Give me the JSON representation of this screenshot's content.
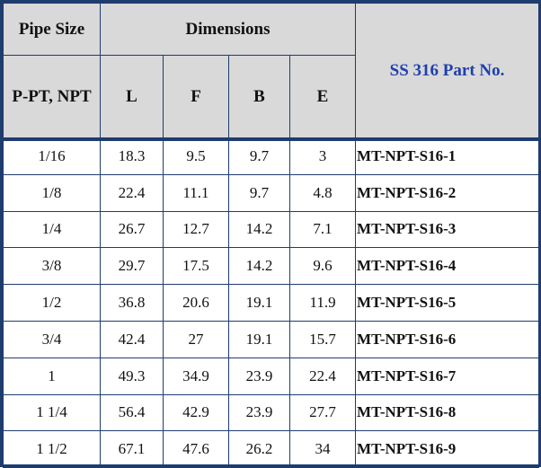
{
  "header": {
    "pipe_size": "Pipe Size",
    "dimensions": "Dimensions",
    "part_no": "SS 316 Part No.",
    "thread_type": "P-PT, NPT",
    "col_l": "L",
    "col_f": "F",
    "col_b": "B",
    "col_e": "E"
  },
  "rows": [
    {
      "size": "1/16",
      "l": "18.3",
      "f": "9.5",
      "b": "9.7",
      "e": "3",
      "part": "MT-NPT-S16-1"
    },
    {
      "size": "1/8",
      "l": "22.4",
      "f": "11.1",
      "b": "9.7",
      "e": "4.8",
      "part": "MT-NPT-S16-2"
    },
    {
      "size": "1/4",
      "l": "26.7",
      "f": "12.7",
      "b": "14.2",
      "e": "7.1",
      "part": "MT-NPT-S16-3"
    },
    {
      "size": "3/8",
      "l": "29.7",
      "f": "17.5",
      "b": "14.2",
      "e": "9.6",
      "part": "MT-NPT-S16-4"
    },
    {
      "size": "1/2",
      "l": "36.8",
      "f": "20.6",
      "b": "19.1",
      "e": "11.9",
      "part": "MT-NPT-S16-5"
    },
    {
      "size": "3/4",
      "l": "42.4",
      "f": "27",
      "b": "19.1",
      "e": "15.7",
      "part": "MT-NPT-S16-6"
    },
    {
      "size": "1",
      "l": "49.3",
      "f": "34.9",
      "b": "23.9",
      "e": "22.4",
      "part": "MT-NPT-S16-7"
    },
    {
      "size": "1 1/4",
      "l": "56.4",
      "f": "42.9",
      "b": "23.9",
      "e": "27.7",
      "part": "MT-NPT-S16-8"
    },
    {
      "size": "1 1/2",
      "l": "67.1",
      "f": "47.6",
      "b": "26.2",
      "e": "34",
      "part": "MT-NPT-S16-9"
    }
  ]
}
